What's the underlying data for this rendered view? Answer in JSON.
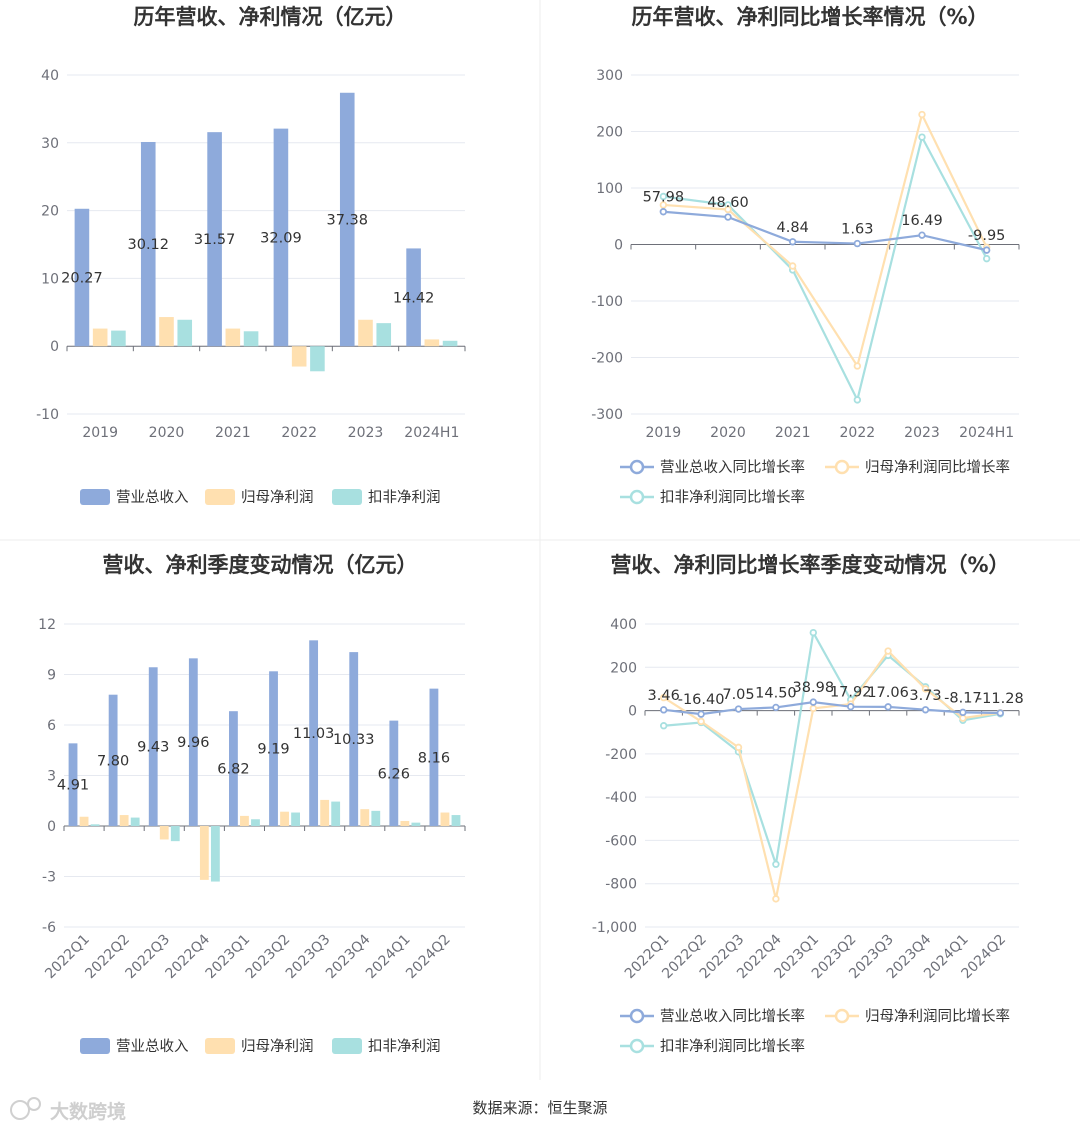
{
  "colors": {
    "revenue": "#8eaadb",
    "net_profit": "#ffe0b0",
    "deducted_profit": "#a8e0e0",
    "axis": "#6e7079",
    "grid": "#e6e9f0",
    "divider": "#eeeeee"
  },
  "footer": {
    "source": "数据来源：恒生聚源",
    "watermark": "大数跨境"
  },
  "chart_data": [
    {
      "id": "annual_amount",
      "type": "bar",
      "title": "历年营收、净利情况（亿元）",
      "categories": [
        "2019",
        "2020",
        "2021",
        "2022",
        "2023",
        "2024H1"
      ],
      "ylim": [
        -10,
        40
      ],
      "yticks": [
        -10,
        0,
        10,
        20,
        30,
        40
      ],
      "series": [
        {
          "name": "营业总收入",
          "color_key": "revenue",
          "values": [
            20.27,
            30.12,
            31.57,
            32.09,
            37.38,
            14.42
          ],
          "labels": [
            "20.27",
            "30.12",
            "31.57",
            "32.09",
            "37.38",
            "14.42"
          ]
        },
        {
          "name": "归母净利润",
          "color_key": "net_profit",
          "values": [
            2.6,
            4.3,
            2.6,
            -3.0,
            3.9,
            1.0
          ]
        },
        {
          "name": "扣非净利润",
          "color_key": "deducted_profit",
          "values": [
            2.3,
            3.9,
            2.2,
            -3.7,
            3.4,
            0.8
          ]
        }
      ],
      "legend_position": "bottom"
    },
    {
      "id": "annual_growth",
      "type": "line",
      "title": "历年营收、净利同比增长率情况（%）",
      "categories": [
        "2019",
        "2020",
        "2021",
        "2022",
        "2023",
        "2024H1"
      ],
      "ylim": [
        -300,
        300
      ],
      "yticks": [
        -300,
        -200,
        -100,
        0,
        100,
        200,
        300
      ],
      "series": [
        {
          "name": "营业总收入同比增长率",
          "color_key": "revenue",
          "values": [
            57.98,
            48.6,
            4.84,
            1.63,
            16.49,
            -9.95
          ],
          "labels": [
            "57.98",
            "48.60",
            "4.84",
            "1.63",
            "16.49",
            "-9.95"
          ]
        },
        {
          "name": "归母净利润同比增长率",
          "color_key": "net_profit",
          "values": [
            70,
            62,
            -38,
            -215,
            230,
            -5
          ]
        },
        {
          "name": "扣非净利润同比增长率",
          "color_key": "deducted_profit",
          "values": [
            85,
            70,
            -45,
            -275,
            190,
            -25
          ]
        }
      ],
      "legend_position": "bottom"
    },
    {
      "id": "quarterly_amount",
      "type": "bar",
      "title": "营收、净利季度变动情况（亿元）",
      "categories": [
        "2022Q1",
        "2022Q2",
        "2022Q3",
        "2022Q4",
        "2023Q1",
        "2023Q2",
        "2023Q3",
        "2023Q4",
        "2024Q1",
        "2024Q2"
      ],
      "ylim": [
        -6,
        12
      ],
      "yticks": [
        -6,
        -3,
        0,
        3,
        6,
        9,
        12
      ],
      "series": [
        {
          "name": "营业总收入",
          "color_key": "revenue",
          "values": [
            4.91,
            7.8,
            9.43,
            9.96,
            6.82,
            9.19,
            11.03,
            10.33,
            6.26,
            8.16
          ],
          "labels": [
            "4.91",
            "7.80",
            "9.43",
            "9.96",
            "6.82",
            "9.19",
            "11.03",
            "10.33",
            "6.26",
            "8.16"
          ]
        },
        {
          "name": "归母净利润",
          "color_key": "net_profit",
          "values": [
            0.55,
            0.65,
            -0.8,
            -3.2,
            0.6,
            0.85,
            1.55,
            1.0,
            0.3,
            0.8
          ]
        },
        {
          "name": "扣非净利润",
          "color_key": "deducted_profit",
          "values": [
            0.1,
            0.5,
            -0.9,
            -3.3,
            0.4,
            0.8,
            1.45,
            0.9,
            0.2,
            0.65
          ]
        }
      ],
      "legend_position": "bottom"
    },
    {
      "id": "quarterly_growth",
      "type": "line",
      "title": "营收、净利同比增长率季度变动情况（%）",
      "categories": [
        "2022Q1",
        "2022Q2",
        "2022Q3",
        "2022Q4",
        "2023Q1",
        "2023Q2",
        "2023Q3",
        "2023Q4",
        "2024Q1",
        "2024Q2"
      ],
      "ylim": [
        -1000,
        400
      ],
      "yticks": [
        -1000,
        -800,
        -600,
        -400,
        -200,
        0,
        200,
        400
      ],
      "ytick_labels": [
        "-1,000",
        "-800",
        "-600",
        "-400",
        "-200",
        "0",
        "200",
        "400"
      ],
      "series": [
        {
          "name": "营业总收入同比增长率",
          "color_key": "revenue",
          "values": [
            3.46,
            -16.4,
            7.05,
            14.5,
            38.98,
            17.92,
            17.06,
            3.73,
            -8.17,
            -11.28
          ],
          "labels": [
            "3.46",
            "-16.40",
            "7.05",
            "14.50",
            "38.98",
            "17.92",
            "17.06",
            "3.73",
            "-8.17",
            "-11.28"
          ]
        },
        {
          "name": "归母净利润同比增长率",
          "color_key": "net_profit",
          "values": [
            60,
            -50,
            -170,
            -870,
            10,
            30,
            275,
            100,
            -35,
            -10
          ]
        },
        {
          "name": "扣非净利润同比增长率",
          "color_key": "deducted_profit",
          "values": [
            -70,
            -55,
            -190,
            -710,
            360,
            50,
            255,
            110,
            -45,
            -15
          ]
        }
      ],
      "legend_position": "bottom"
    }
  ]
}
